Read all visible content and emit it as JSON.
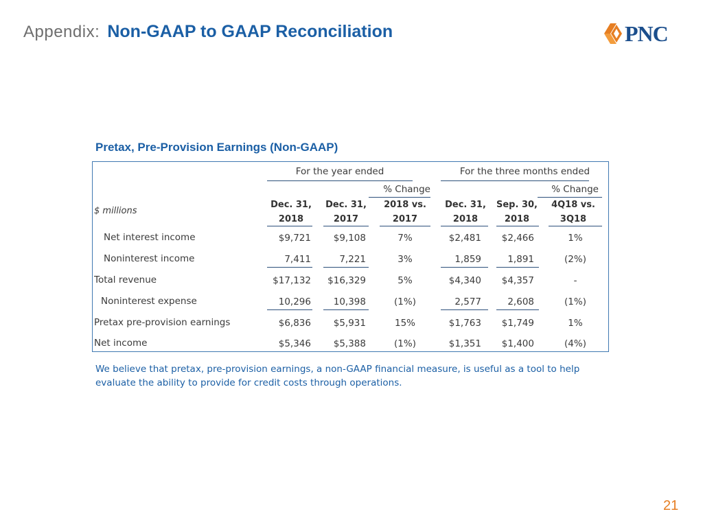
{
  "header": {
    "prefix": "Appendix:",
    "title": "Non-GAAP to GAAP Reconciliation"
  },
  "logo": {
    "text": "PNC",
    "brand_color": "#1b4e8c",
    "accent_color": "#e67e22"
  },
  "table": {
    "title": "Pretax, Pre-Provision Earnings  (Non-GAAP)",
    "units_label": "$ millions",
    "group_headers": [
      "For the year ended",
      "For the three months ended"
    ],
    "pct_change_label": "% Change",
    "columns": [
      {
        "line1": "Dec. 31,",
        "line2": "2018"
      },
      {
        "line1": "Dec. 31,",
        "line2": "2017"
      },
      {
        "line1": "2018 vs.",
        "line2": "2017"
      },
      {
        "line1": "Dec. 31,",
        "line2": "2018"
      },
      {
        "line1": "Sep. 30,",
        "line2": "2018"
      },
      {
        "line1": "4Q18 vs.",
        "line2": "3Q18"
      }
    ],
    "rows": [
      {
        "label": "Net interest income",
        "values": [
          "$9,721",
          "$9,108",
          "7%",
          "$2,481",
          "$2,466",
          "1%"
        ]
      },
      {
        "label": "Noninterest income",
        "values": [
          "7,411",
          "7,221",
          "3%",
          "1,859",
          "1,891",
          "(2%)"
        ]
      },
      {
        "label": "Total revenue",
        "values": [
          "$17,132",
          "$16,329",
          "5%",
          "$4,340",
          "$4,357",
          "-"
        ]
      },
      {
        "label": "Noninterest expense",
        "values": [
          "10,296",
          "10,398",
          "(1%)",
          "2,577",
          "2,608",
          "(1%)"
        ]
      },
      {
        "label": "Pretax pre-provision earnings",
        "values": [
          "$6,836",
          "$5,931",
          "15%",
          "$1,763",
          "$1,749",
          "1%"
        ]
      },
      {
        "label": "Net income",
        "values": [
          "$5,346",
          "$5,388",
          "(1%)",
          "$1,351",
          "$1,400",
          "(4%)"
        ]
      }
    ]
  },
  "note": "We believe that pretax, pre-provision earnings, a non-GAAP financial measure, is useful as a tool to help evaluate the ability to provide for credit costs through operations.",
  "page_number": "21"
}
